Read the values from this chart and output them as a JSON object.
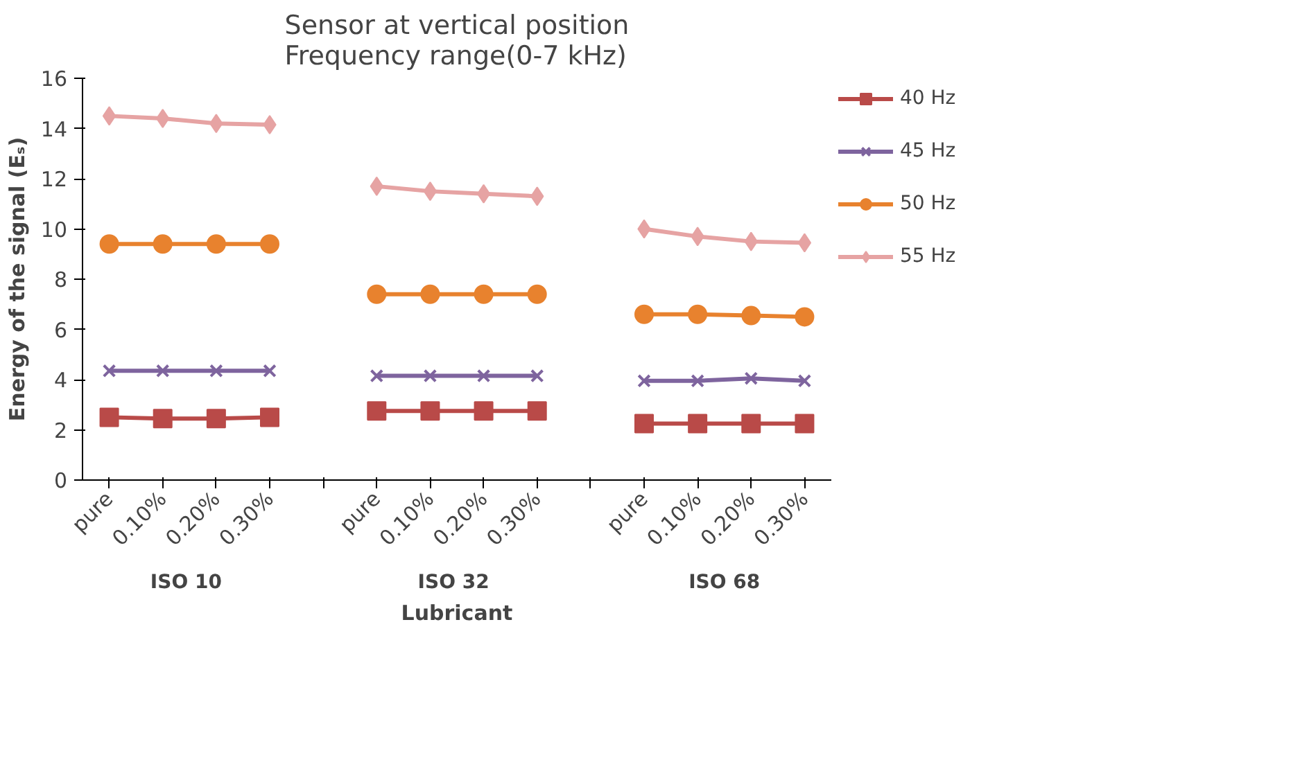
{
  "chart_data": {
    "type": "line",
    "title": "Sensor at vertical position\nFrequency range(0-7 kHz)",
    "xlabel": "Lubricant",
    "ylabel": "Energy of the signal (Eₛ)",
    "categories": [
      "pure",
      "0.10%",
      "0.20%",
      "0.30%",
      null,
      "pure",
      "0.10%",
      "0.20%",
      "0.30%",
      null,
      "pure",
      "0.10%",
      "0.20%",
      "0.30%"
    ],
    "annotations": [
      "ISO  10",
      "ISO  32",
      "ISO 68"
    ],
    "series": [
      {
        "name": "40 Hz",
        "color": "#b94a48",
        "marker": "square",
        "values": [
          2.5,
          2.45,
          2.45,
          2.5,
          null,
          2.75,
          2.75,
          2.75,
          2.75,
          null,
          2.25,
          2.25,
          2.25,
          2.25
        ]
      },
      {
        "name": "45 Hz",
        "color": "#7e649e",
        "marker": "cross",
        "values": [
          4.35,
          4.35,
          4.35,
          4.35,
          null,
          4.15,
          4.15,
          4.15,
          4.15,
          null,
          3.95,
          3.95,
          4.05,
          3.95
        ]
      },
      {
        "name": "50 Hz",
        "color": "#e8822e",
        "marker": "circle",
        "values": [
          9.4,
          9.4,
          9.4,
          9.4,
          null,
          7.4,
          7.4,
          7.4,
          7.4,
          null,
          6.6,
          6.6,
          6.55,
          6.5
        ]
      },
      {
        "name": "55 Hz",
        "color": "#e6a3a3",
        "marker": "diamond",
        "values": [
          14.5,
          14.4,
          14.2,
          14.15,
          null,
          11.7,
          11.5,
          11.4,
          11.3,
          null,
          10.0,
          9.7,
          9.5,
          9.45
        ]
      }
    ],
    "ylim": [
      0,
      16
    ],
    "yticks": [
      0,
      2,
      4,
      6,
      8,
      10,
      12,
      14,
      16
    ],
    "grid": false,
    "legend": "right"
  }
}
